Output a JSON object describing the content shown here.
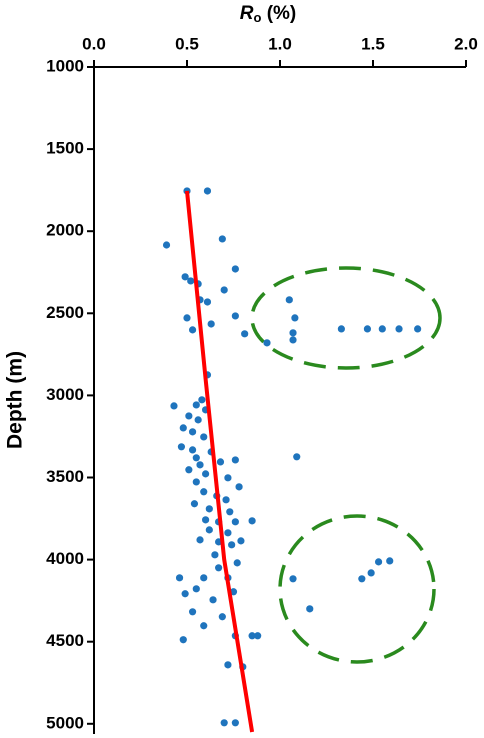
{
  "chart_data": {
    "type": "scatter",
    "xlabel": {
      "symbol": "R",
      "subscript": "o",
      "unit": "(%)"
    },
    "ylabel": "Depth (m)",
    "xlim": [
      0,
      2.0
    ],
    "xticks": [
      {
        "value": 0,
        "label": "0.0"
      },
      {
        "value": 0.5,
        "label": "0.5"
      },
      {
        "value": 1.0,
        "label": "1.0"
      },
      {
        "value": 1.5,
        "label": "1.5"
      },
      {
        "value": 2.0,
        "label": "2.0"
      }
    ],
    "ylim": [
      1000,
      5050
    ],
    "yticks": [
      1000,
      1500,
      2000,
      2500,
      3000,
      3500,
      4000,
      4500,
      5000
    ],
    "y_inverted": true,
    "series": [
      {
        "type": "scatter",
        "color": "#1f74bd",
        "x": [
          0.5,
          0.61,
          0.39,
          0.69,
          0.76,
          0.49,
          0.52,
          0.56,
          0.7,
          0.57,
          0.61,
          1.05,
          0.76,
          0.5,
          1.08,
          0.63,
          0.53,
          0.81,
          1.07,
          1.33,
          1.47,
          1.55,
          1.64,
          1.74,
          0.93,
          1.07,
          0.61,
          0.58,
          0.55,
          0.43,
          0.6,
          0.51,
          0.56,
          0.48,
          0.53,
          0.59,
          0.47,
          0.53,
          0.63,
          0.55,
          0.68,
          0.76,
          1.09,
          0.57,
          0.51,
          0.6,
          0.72,
          0.55,
          0.78,
          0.59,
          0.66,
          0.71,
          0.54,
          0.62,
          0.73,
          0.6,
          0.67,
          0.76,
          0.85,
          0.62,
          0.72,
          0.57,
          0.67,
          0.74,
          0.79,
          0.65,
          0.77,
          1.59,
          1.53,
          1.49,
          1.44,
          1.07,
          0.46,
          0.59,
          0.72,
          0.55,
          0.67,
          0.75,
          0.64,
          0.53,
          0.69,
          1.16,
          0.49,
          0.59,
          0.76,
          0.85,
          0.88,
          0.48,
          0.72,
          0.8,
          0.7,
          0.76
        ],
        "values": [
          1755,
          1755,
          2084,
          2047,
          2230,
          2278,
          2303,
          2321,
          2358,
          2418,
          2431,
          2418,
          2516,
          2528,
          2528,
          2565,
          2601,
          2625,
          2619,
          2595,
          2595,
          2595,
          2595,
          2595,
          2680,
          2662,
          2875,
          3027,
          3058,
          3064,
          3088,
          3125,
          3149,
          3198,
          3222,
          3253,
          3313,
          3332,
          3344,
          3380,
          3405,
          3393,
          3374,
          3423,
          3453,
          3478,
          3502,
          3527,
          3557,
          3587,
          3612,
          3636,
          3660,
          3691,
          3709,
          3758,
          3770,
          3770,
          3764,
          3819,
          3837,
          3880,
          3892,
          3910,
          3886,
          3971,
          4020,
          4008,
          4014,
          4081,
          4117,
          4117,
          4111,
          4111,
          4111,
          4178,
          4050,
          4196,
          4245,
          4318,
          4348,
          4300,
          4208,
          4403,
          4464,
          4464,
          4464,
          4488,
          4641,
          4653,
          4994,
          4994
        ]
      },
      {
        "type": "line",
        "color": "#ff0000",
        "x": [
          0.5,
          0.6,
          0.7,
          0.85
        ],
        "values": [
          1755,
          2900,
          4000,
          5050
        ]
      }
    ]
  }
}
